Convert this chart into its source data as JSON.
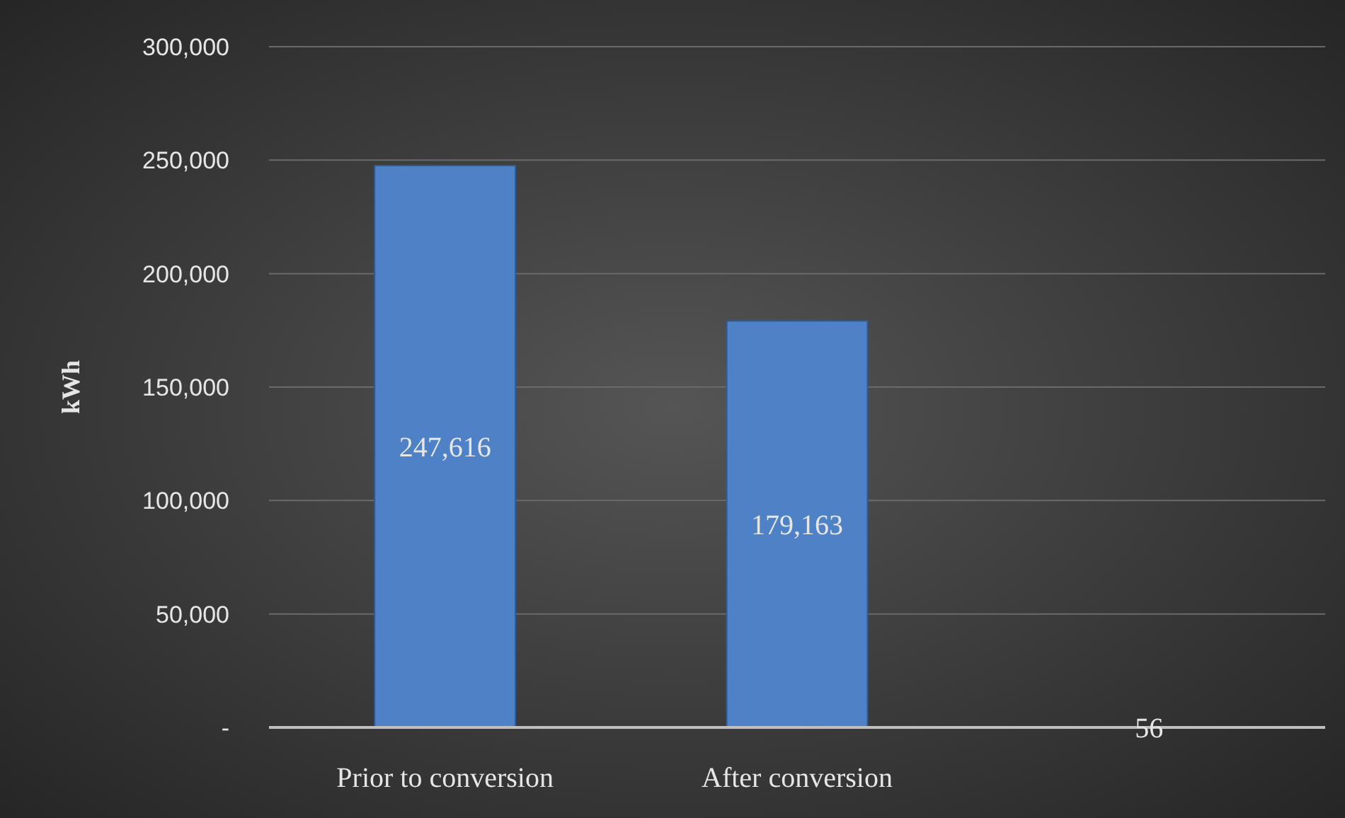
{
  "chart_data": {
    "type": "bar",
    "ylabel": "kWh",
    "categories": [
      "Prior to conversion",
      "After conversion",
      null
    ],
    "values": [
      247616,
      179163,
      56
    ],
    "color": "#4f81c7",
    "value_labels": [
      "247,616",
      "179,163",
      "56"
    ],
    "ylim": [
      0,
      300000
    ],
    "yticks": [
      {
        "value": 0,
        "label": "-"
      },
      {
        "value": 50000,
        "label": "50,000"
      },
      {
        "value": 100000,
        "label": "100,000"
      },
      {
        "value": 150000,
        "label": "150,000"
      },
      {
        "value": 200000,
        "label": "200,000"
      },
      {
        "value": 250000,
        "label": "250,000"
      },
      {
        "value": 300000,
        "label": "300,000"
      }
    ],
    "grid": "y"
  }
}
